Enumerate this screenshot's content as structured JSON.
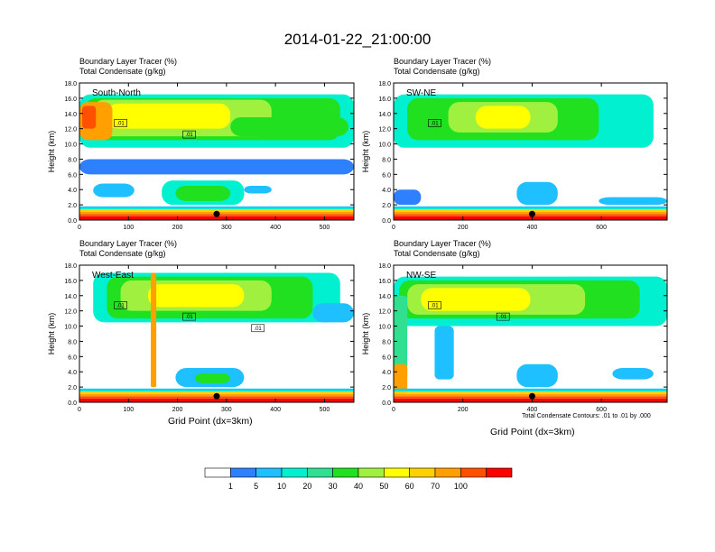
{
  "title": "2014-01-22_21:00:00",
  "subtitle_line1": "Boundary Layer Tracer    (%)",
  "subtitle_line2": "Total Condensate    (g/kg)",
  "colorbar": {
    "colors": [
      "#ffffff",
      "#2f80ff",
      "#1ec0ff",
      "#00f0d0",
      "#30e090",
      "#20e020",
      "#a0f040",
      "#ffff00",
      "#ffd000",
      "#ffa000",
      "#ff5000",
      "#ff0000"
    ],
    "labels": [
      "1",
      "5",
      "10",
      "20",
      "30",
      "40",
      "50",
      "60",
      "70",
      "100"
    ]
  },
  "chart_data": [
    {
      "type": "heatmap",
      "panel_label": "South-North",
      "ylabel": "Height (km)",
      "xlabel": "",
      "xlim": [
        0,
        560
      ],
      "ylim": [
        0,
        18
      ],
      "xticks": [
        "0",
        "100",
        "200",
        "300",
        "400",
        "500"
      ],
      "yticks": [
        "0.0",
        "2.0",
        "4.0",
        "6.0",
        "8.0",
        "10.0",
        "12.0",
        "14.0",
        "16.0",
        "18.0"
      ],
      "contour_labels": [
        ".01",
        ".01"
      ],
      "marker_x": 280
    },
    {
      "type": "heatmap",
      "panel_label": "SW-NE",
      "ylabel": "Height (km)",
      "xlabel": "",
      "xlim": [
        0,
        790
      ],
      "ylim": [
        0,
        18
      ],
      "xticks": [
        "0",
        "200",
        "400",
        "600"
      ],
      "yticks": [
        "0.0",
        "2.0",
        "4.0",
        "6.0",
        "8.0",
        "10.0",
        "12.0",
        "14.0",
        "16.0",
        "18.0"
      ],
      "contour_labels": [
        ".01"
      ],
      "marker_x": 400
    },
    {
      "type": "heatmap",
      "panel_label": "West-East",
      "ylabel": "Height (km)",
      "xlabel": "Grid Point (dx=3km)",
      "xlim": [
        0,
        560
      ],
      "ylim": [
        0,
        18
      ],
      "xticks": [
        "0",
        "100",
        "200",
        "300",
        "400",
        "500"
      ],
      "yticks": [
        "0.0",
        "2.0",
        "4.0",
        "6.0",
        "8.0",
        "10.0",
        "12.0",
        "14.0",
        "16.0",
        "18.0"
      ],
      "contour_labels": [
        ".01",
        ".01",
        ".01"
      ],
      "marker_x": 280
    },
    {
      "type": "heatmap",
      "panel_label": "NW-SE",
      "ylabel": "Height (km)",
      "xlabel": "Grid Point (dx=3km)",
      "xlim": [
        0,
        790
      ],
      "ylim": [
        0,
        18
      ],
      "xticks": [
        "0",
        "200",
        "400",
        "600"
      ],
      "yticks": [
        "0.0",
        "2.0",
        "4.0",
        "6.0",
        "8.0",
        "10.0",
        "12.0",
        "14.0",
        "16.0",
        "18.0"
      ],
      "contour_labels": [
        ".01",
        ".01"
      ],
      "marker_x": 400
    }
  ],
  "contour_note": "Total Condensate Contours: .01 to .01 by .000"
}
